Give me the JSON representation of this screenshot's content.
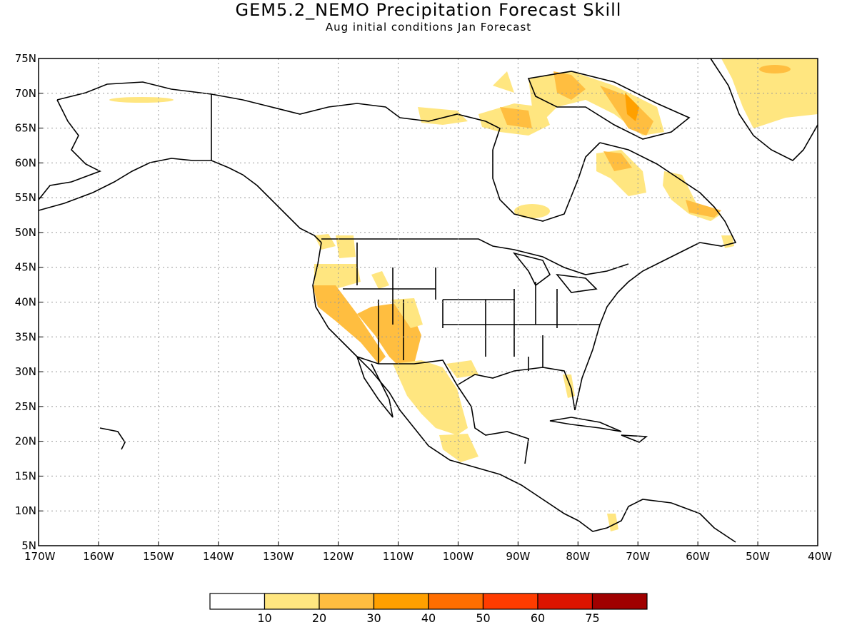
{
  "title": "GEM5.2_NEMO Precipitation Forecast Skill",
  "subtitle": "Aug initial conditions  Jan Forecast",
  "map": {
    "lon_range": [
      -170,
      -40
    ],
    "lat_range": [
      5,
      75
    ],
    "lat_labels": [
      "75N",
      "70N",
      "65N",
      "60N",
      "55N",
      "50N",
      "45N",
      "40N",
      "35N",
      "30N",
      "25N",
      "20N",
      "15N",
      "10N",
      "5N"
    ],
    "lon_labels": [
      "170W",
      "160W",
      "150W",
      "140W",
      "130W",
      "120W",
      "110W",
      "100W",
      "90W",
      "80W",
      "70W",
      "60W",
      "50W",
      "40W"
    ],
    "grid": true
  },
  "colorbar": {
    "colors": [
      "#ffffff",
      "#ffe680",
      "#ffbe40",
      "#ffa000",
      "#ff6e00",
      "#ff3c00",
      "#dc1400",
      "#a00000"
    ],
    "labels": [
      "10",
      "20",
      "30",
      "40",
      "50",
      "60",
      "75"
    ]
  }
}
